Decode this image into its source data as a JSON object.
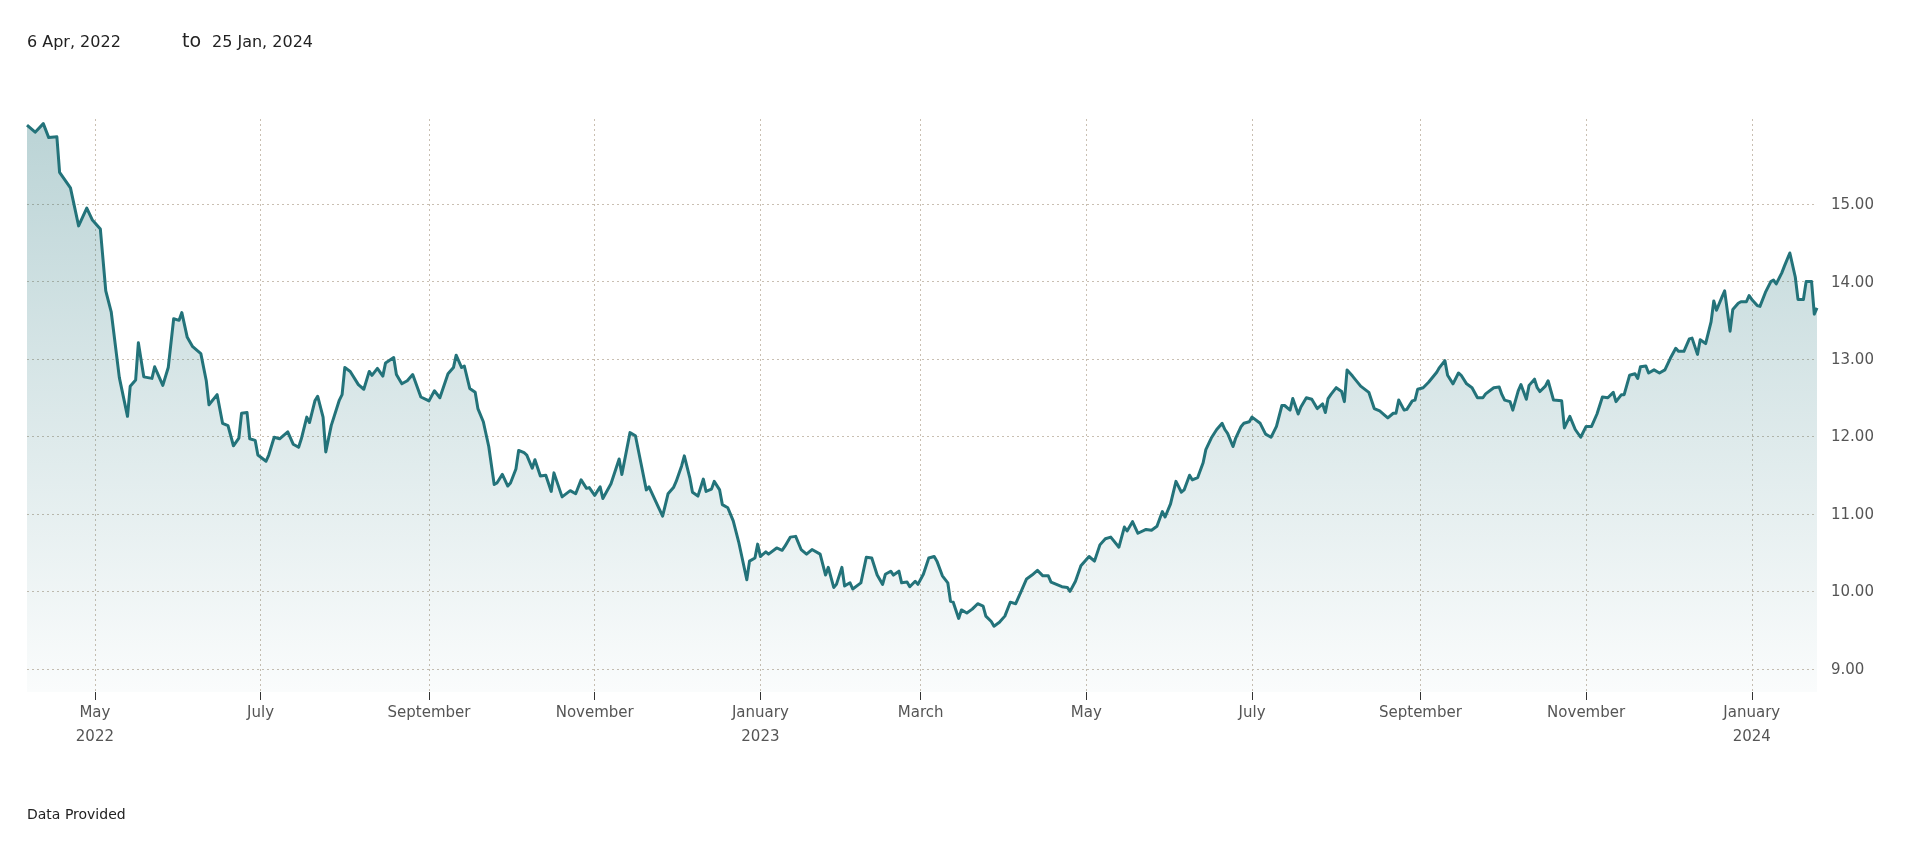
{
  "chart_data": {
    "type": "area",
    "annotations": [
      "6 Apr, 2022",
      "to",
      "25 Jan, 2024",
      "Data Provided"
    ],
    "xlim": [
      "2022-04-06",
      "2024-01-25"
    ],
    "xticks": [
      {
        "value": "2022-05-01",
        "label": "May\n2022"
      },
      {
        "value": "2022-07-01",
        "label": "July"
      },
      {
        "value": "2022-09-01",
        "label": "September"
      },
      {
        "value": "2022-11-01",
        "label": "November"
      },
      {
        "value": "2023-01-01",
        "label": "January\n2023"
      },
      {
        "value": "2023-03-01",
        "label": "March"
      },
      {
        "value": "2023-05-01",
        "label": "May"
      },
      {
        "value": "2023-07-01",
        "label": "July"
      },
      {
        "value": "2023-09-01",
        "label": "September"
      },
      {
        "value": "2023-11-01",
        "label": "November"
      },
      {
        "value": "2024-01-01",
        "label": "January\n2024"
      }
    ],
    "ylim": [
      8.7,
      16.1
    ],
    "yticks": [
      {
        "value": 9,
        "label": "9.00"
      },
      {
        "value": 10,
        "label": "10.00"
      },
      {
        "value": 11,
        "label": "11.00"
      },
      {
        "value": 12,
        "label": "12.00"
      },
      {
        "value": 13,
        "label": "13.00"
      },
      {
        "value": 14,
        "label": "14.00"
      },
      {
        "value": 15,
        "label": "15.00"
      }
    ],
    "grid": true,
    "series": [
      {
        "color": "#23737a",
        "x": [
          "2022-04-06",
          "2022-04-09",
          "2022-04-12",
          "2022-04-14",
          "2022-04-17",
          "2022-04-18",
          "2022-04-22",
          "2022-04-25",
          "2022-04-28",
          "2022-04-30",
          "2022-05-03",
          "2022-05-05",
          "2022-05-07",
          "2022-05-10",
          "2022-05-13",
          "2022-05-14",
          "2022-05-16",
          "2022-05-17",
          "2022-05-19",
          "2022-05-22",
          "2022-05-23",
          "2022-05-26",
          "2022-05-28",
          "2022-05-30",
          "2022-06-01",
          "2022-06-02",
          "2022-06-04",
          "2022-06-06",
          "2022-06-09",
          "2022-06-11",
          "2022-06-12",
          "2022-06-15",
          "2022-06-17",
          "2022-06-19",
          "2022-06-21",
          "2022-06-23",
          "2022-06-24",
          "2022-06-26",
          "2022-06-27",
          "2022-06-29",
          "2022-06-30",
          "2022-07-03",
          "2022-07-04",
          "2022-07-06",
          "2022-07-08",
          "2022-07-11",
          "2022-07-13",
          "2022-07-15",
          "2022-07-16",
          "2022-07-18",
          "2022-07-19",
          "2022-07-21",
          "2022-07-22",
          "2022-07-24",
          "2022-07-25",
          "2022-07-27",
          "2022-07-30",
          "2022-07-31",
          "2022-08-01",
          "2022-08-03",
          "2022-08-06",
          "2022-08-08",
          "2022-08-10",
          "2022-08-11",
          "2022-08-13",
          "2022-08-15",
          "2022-08-16",
          "2022-08-19",
          "2022-08-20",
          "2022-08-22",
          "2022-08-24",
          "2022-08-26",
          "2022-08-29",
          "2022-09-01",
          "2022-09-03",
          "2022-09-05",
          "2022-09-08",
          "2022-09-10",
          "2022-09-11",
          "2022-09-13",
          "2022-09-14",
          "2022-09-16",
          "2022-09-18",
          "2022-09-19",
          "2022-09-21",
          "2022-09-23",
          "2022-09-25",
          "2022-09-26",
          "2022-09-28",
          "2022-09-30",
          "2022-10-01",
          "2022-10-03",
          "2022-10-04",
          "2022-10-06",
          "2022-10-07",
          "2022-10-09",
          "2022-10-10",
          "2022-10-12",
          "2022-10-14",
          "2022-10-16",
          "2022-10-17",
          "2022-10-20",
          "2022-10-23",
          "2022-10-25",
          "2022-10-27",
          "2022-10-29",
          "2022-10-30",
          "2022-11-01",
          "2022-11-03",
          "2022-11-04",
          "2022-11-07",
          "2022-11-10",
          "2022-11-11",
          "2022-11-14",
          "2022-11-16",
          "2022-11-18",
          "2022-11-20",
          "2022-11-21",
          "2022-11-26",
          "2022-11-28",
          "2022-11-30",
          "2022-12-01",
          "2022-12-03",
          "2022-12-04",
          "2022-12-06",
          "2022-12-07",
          "2022-12-09",
          "2022-12-11",
          "2022-12-12",
          "2022-12-14",
          "2022-12-15",
          "2022-12-17",
          "2022-12-18",
          "2022-12-20",
          "2022-12-22",
          "2022-12-24",
          "2022-12-27",
          "2022-12-28",
          "2022-12-30",
          "2022-12-31",
          "2023-01-01",
          "2023-01-03",
          "2023-01-04",
          "2023-01-07",
          "2023-01-09",
          "2023-01-10",
          "2023-01-12",
          "2023-01-14",
          "2023-01-16",
          "2023-01-18",
          "2023-01-20",
          "2023-01-23",
          "2023-01-25",
          "2023-01-26",
          "2023-01-28",
          "2023-01-29",
          "2023-01-31",
          "2023-02-01",
          "2023-02-03",
          "2023-02-04",
          "2023-02-07",
          "2023-02-09",
          "2023-02-11",
          "2023-02-13",
          "2023-02-15",
          "2023-02-16",
          "2023-02-18",
          "2023-02-19",
          "2023-02-21",
          "2023-02-22",
          "2023-02-24",
          "2023-02-25",
          "2023-02-27",
          "2023-02-28",
          "2023-03-02",
          "2023-03-04",
          "2023-03-06",
          "2023-03-07",
          "2023-03-09",
          "2023-03-11",
          "2023-03-12",
          "2023-03-13",
          "2023-03-15",
          "2023-03-16",
          "2023-03-18",
          "2023-03-20",
          "2023-03-22",
          "2023-03-24",
          "2023-03-25",
          "2023-03-27",
          "2023-03-28",
          "2023-03-30",
          "2023-04-01",
          "2023-04-03",
          "2023-04-05",
          "2023-04-07",
          "2023-04-09",
          "2023-04-11",
          "2023-04-13",
          "2023-04-15",
          "2023-04-17",
          "2023-04-18",
          "2023-04-20",
          "2023-04-22",
          "2023-04-24",
          "2023-04-25",
          "2023-04-27",
          "2023-04-29",
          "2023-05-02",
          "2023-05-04",
          "2023-05-06",
          "2023-05-08",
          "2023-05-10",
          "2023-05-13",
          "2023-05-15",
          "2023-05-16",
          "2023-05-18",
          "2023-05-20",
          "2023-05-23",
          "2023-05-25",
          "2023-05-27",
          "2023-05-29",
          "2023-05-30",
          "2023-06-01",
          "2023-06-03",
          "2023-06-05",
          "2023-06-06",
          "2023-06-08",
          "2023-06-09",
          "2023-06-11",
          "2023-06-13",
          "2023-06-14",
          "2023-06-16",
          "2023-06-18",
          "2023-06-20",
          "2023-06-21",
          "2023-06-22",
          "2023-06-24",
          "2023-06-25",
          "2023-06-27",
          "2023-06-28",
          "2023-06-30",
          "2023-07-01",
          "2023-07-04",
          "2023-07-06",
          "2023-07-08",
          "2023-07-10",
          "2023-07-12",
          "2023-07-13",
          "2023-07-15",
          "2023-07-16",
          "2023-07-18",
          "2023-07-19",
          "2023-07-21",
          "2023-07-23",
          "2023-07-25",
          "2023-07-27",
          "2023-07-28",
          "2023-07-29",
          "2023-07-30",
          "2023-08-01",
          "2023-08-03",
          "2023-08-04",
          "2023-08-05",
          "2023-08-07",
          "2023-08-10",
          "2023-08-13",
          "2023-08-15",
          "2023-08-17",
          "2023-08-19",
          "2023-08-20",
          "2023-08-22",
          "2023-08-23",
          "2023-08-24",
          "2023-08-26",
          "2023-08-27",
          "2023-08-29",
          "2023-08-30",
          "2023-08-31",
          "2023-09-02",
          "2023-09-04",
          "2023-09-07",
          "2023-09-08",
          "2023-09-10",
          "2023-09-11",
          "2023-09-13",
          "2023-09-15",
          "2023-09-16",
          "2023-09-18",
          "2023-09-20",
          "2023-09-22",
          "2023-09-24",
          "2023-09-25",
          "2023-09-28",
          "2023-09-30",
          "2023-10-01",
          "2023-10-02",
          "2023-10-04",
          "2023-10-05",
          "2023-10-07",
          "2023-10-08",
          "2023-10-10",
          "2023-10-11",
          "2023-10-13",
          "2023-10-14",
          "2023-10-15",
          "2023-10-17",
          "2023-10-18",
          "2023-10-20",
          "2023-10-23",
          "2023-10-24",
          "2023-10-26",
          "2023-10-28",
          "2023-10-30",
          "2023-11-01",
          "2023-11-03",
          "2023-11-05",
          "2023-11-07",
          "2023-11-09",
          "2023-11-11",
          "2023-11-12",
          "2023-11-14",
          "2023-11-15",
          "2023-11-17",
          "2023-11-19",
          "2023-11-20",
          "2023-11-21",
          "2023-11-23",
          "2023-11-24",
          "2023-11-26",
          "2023-11-28",
          "2023-11-30",
          "2023-12-02",
          "2023-12-04",
          "2023-12-05",
          "2023-12-07",
          "2023-12-09",
          "2023-12-10",
          "2023-12-12",
          "2023-12-13",
          "2023-12-15",
          "2023-12-17",
          "2023-12-18",
          "2023-12-19",
          "2023-12-21",
          "2023-12-22",
          "2023-12-24",
          "2023-12-25",
          "2023-12-27",
          "2023-12-28",
          "2023-12-30",
          "2023-12-31",
          "2024-01-01",
          "2024-01-03",
          "2024-01-04",
          "2024-01-06",
          "2024-01-08",
          "2024-01-09",
          "2024-01-10",
          "2024-01-12",
          "2024-01-13",
          "2024-01-15",
          "2024-01-17",
          "2024-01-18",
          "2024-01-20",
          "2024-01-21",
          "2024-01-23",
          "2024-01-24",
          "2024-01-25"
        ],
        "values": [
          16.02,
          15.93,
          16.04,
          15.86,
          15.87,
          15.41,
          15.21,
          14.72,
          14.95,
          14.8,
          14.68,
          13.88,
          13.61,
          12.76,
          12.26,
          12.65,
          12.73,
          13.21,
          12.77,
          12.75,
          12.9,
          12.66,
          12.89,
          13.52,
          13.5,
          13.6,
          13.28,
          13.16,
          13.07,
          12.72,
          12.41,
          12.54,
          12.17,
          12.14,
          11.88,
          11.98,
          12.3,
          12.31,
          11.97,
          11.95,
          11.76,
          11.68,
          11.76,
          11.99,
          11.97,
          12.06,
          11.9,
          11.86,
          11.97,
          12.25,
          12.18,
          12.46,
          12.52,
          12.25,
          11.8,
          12.14,
          12.47,
          12.54,
          12.89,
          12.84,
          12.67,
          12.61,
          12.84,
          12.79,
          12.88,
          12.78,
          12.95,
          13.02,
          12.8,
          12.68,
          12.72,
          12.8,
          12.51,
          12.46,
          12.59,
          12.5,
          12.81,
          12.89,
          13.05,
          12.89,
          12.91,
          12.62,
          12.57,
          12.36,
          12.19,
          11.87,
          11.38,
          11.4,
          11.51,
          11.36,
          11.4,
          11.58,
          11.82,
          11.79,
          11.76,
          11.59,
          11.7,
          11.49,
          11.5,
          11.29,
          11.53,
          11.22,
          11.3,
          11.26,
          11.44,
          11.33,
          11.34,
          11.24,
          11.35,
          11.2,
          11.39,
          11.71,
          11.51,
          12.05,
          12.01,
          11.66,
          11.31,
          11.35,
          10.97,
          11.26,
          11.34,
          11.42,
          11.62,
          11.75,
          11.47,
          11.28,
          11.23,
          11.45,
          11.29,
          11.32,
          11.42,
          11.31,
          11.12,
          11.08,
          10.91,
          10.64,
          10.15,
          10.39,
          10.43,
          10.61,
          10.45,
          10.51,
          10.48,
          10.56,
          10.53,
          10.58,
          10.7,
          10.71,
          10.54,
          10.48,
          10.54,
          10.48,
          10.21,
          10.31,
          10.05,
          10.09,
          10.31,
          10.07,
          10.11,
          10.03,
          10.11,
          10.44,
          10.43,
          10.21,
          10.09,
          10.22,
          10.26,
          10.21,
          10.26,
          10.11,
          10.12,
          10.06,
          10.13,
          10.09,
          10.22,
          10.43,
          10.45,
          10.39,
          10.2,
          10.11,
          9.87,
          9.86,
          9.65,
          9.76,
          9.72,
          9.77,
          9.84,
          9.81,
          9.68,
          9.61,
          9.55,
          9.6,
          9.68,
          9.86,
          9.84,
          10.0,
          10.16,
          10.21,
          10.27,
          10.2,
          10.2,
          10.12,
          10.09,
          10.06,
          10.05,
          10.0,
          10.13,
          10.33,
          10.45,
          10.39,
          10.6,
          10.68,
          10.7,
          10.57,
          10.83,
          10.78,
          10.9,
          10.75,
          10.8,
          10.79,
          10.84,
          11.03,
          10.96,
          11.13,
          11.42,
          11.28,
          11.31,
          11.5,
          11.44,
          11.47,
          11.66,
          11.83,
          11.98,
          12.09,
          12.17,
          12.09,
          12.04,
          11.87,
          11.98,
          12.13,
          12.17,
          12.19,
          12.25,
          12.17,
          12.03,
          11.99,
          12.13,
          12.4,
          12.4,
          12.34,
          12.49,
          12.29,
          12.38,
          12.5,
          12.48,
          12.36,
          12.42,
          12.31,
          12.49,
          12.54,
          12.63,
          12.58,
          12.45,
          12.86,
          12.78,
          12.65,
          12.57,
          12.36,
          12.33,
          12.27,
          12.24,
          12.3,
          12.3,
          12.47,
          12.34,
          12.35,
          12.46,
          12.47,
          12.61,
          12.63,
          12.7,
          12.83,
          12.89,
          12.98,
          12.79,
          12.68,
          12.82,
          12.79,
          12.68,
          12.63,
          12.5,
          12.5,
          12.55,
          12.63,
          12.64,
          12.54,
          12.47,
          12.45,
          12.34,
          12.59,
          12.67,
          12.48,
          12.66,
          12.74,
          12.63,
          12.58,
          12.65,
          12.72,
          12.47,
          12.46,
          12.11,
          12.26,
          12.09,
          11.99,
          12.13,
          12.13,
          12.29,
          12.51,
          12.5,
          12.57,
          12.45,
          12.54,
          12.54,
          12.79,
          12.81,
          12.75,
          12.9,
          12.91,
          12.82,
          12.86,
          12.82,
          12.86,
          13.01,
          13.14,
          13.1,
          13.1,
          13.26,
          13.27,
          13.06,
          13.25,
          13.2,
          13.48,
          13.75,
          13.63,
          13.8,
          13.88,
          13.36,
          13.64,
          13.72,
          13.74,
          13.74,
          13.82,
          13.77,
          13.69,
          13.68,
          13.86,
          14.0,
          14.02,
          13.97,
          14.11,
          14.2,
          14.37,
          14.06,
          13.77,
          13.77,
          14.0,
          14.0,
          13.58,
          13.66
        ]
      }
    ]
  }
}
